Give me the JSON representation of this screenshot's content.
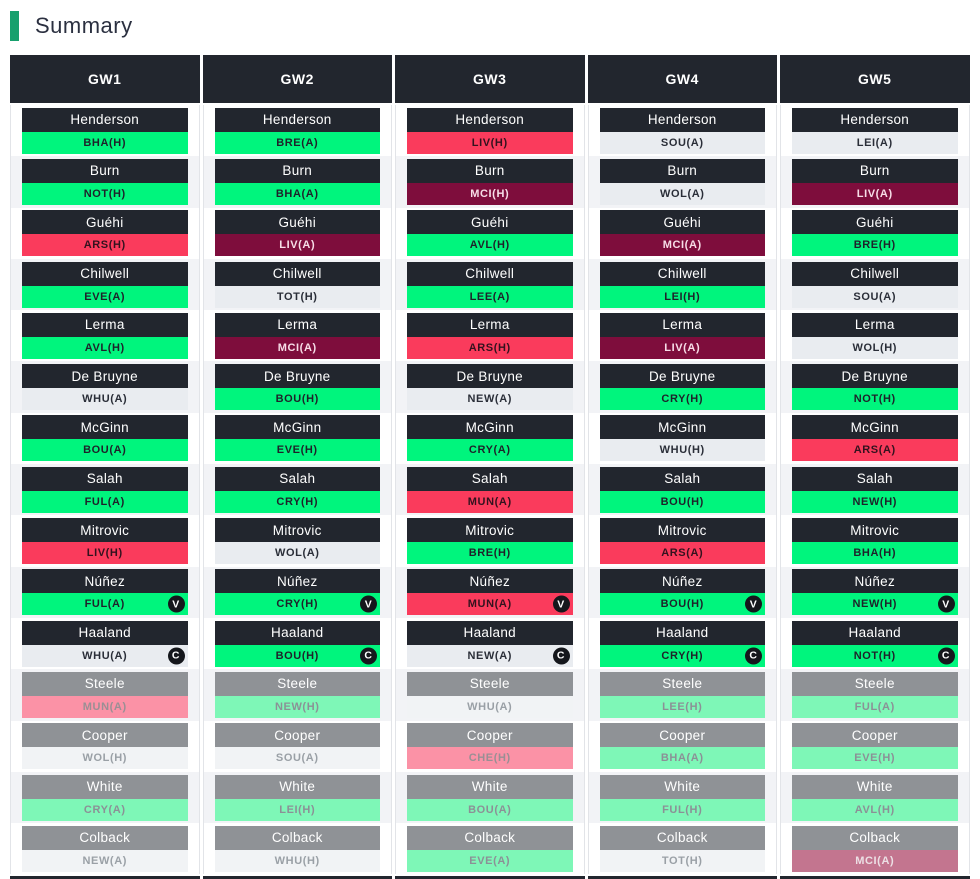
{
  "title": "Summary",
  "accent_color": "#17a06d",
  "colors": {
    "header_bg": "#22262e",
    "bench_name_bg": "#8f9296",
    "row_stripe": "#f2f3f6",
    "starter": {
      "easy": {
        "bg": "#00f57d",
        "text": "#1e222a"
      },
      "medium": {
        "bg": "#e9ecf0",
        "text": "#2a2e38"
      },
      "hard": {
        "bg": "#fa3b5c",
        "text": "#33121e"
      },
      "very_hard": {
        "bg": "#7e0d3c",
        "text": "#f7dde7"
      }
    },
    "bench": {
      "easy": {
        "bg": "#7ef7b7",
        "text": "#8b9196"
      },
      "medium": {
        "bg": "#f1f3f5",
        "text": "#9aa0a6"
      },
      "hard": {
        "bg": "#fb92a6",
        "text": "#9a8f94"
      },
      "very_hard": {
        "bg": "#c3758f",
        "text": "#ece0e5"
      }
    }
  },
  "badge_labels": {
    "captain": "C",
    "vice_captain": "V"
  },
  "gameweeks": [
    {
      "label": "GW1",
      "players": [
        {
          "name": "Henderson",
          "fixture": "BHA(H)",
          "difficulty": "easy",
          "badge": "",
          "bench": false
        },
        {
          "name": "Burn",
          "fixture": "NOT(H)",
          "difficulty": "easy",
          "badge": "",
          "bench": false
        },
        {
          "name": "Guéhi",
          "fixture": "ARS(H)",
          "difficulty": "hard",
          "badge": "",
          "bench": false
        },
        {
          "name": "Chilwell",
          "fixture": "EVE(A)",
          "difficulty": "easy",
          "badge": "",
          "bench": false
        },
        {
          "name": "Lerma",
          "fixture": "AVL(H)",
          "difficulty": "easy",
          "badge": "",
          "bench": false
        },
        {
          "name": "De Bruyne",
          "fixture": "WHU(A)",
          "difficulty": "medium",
          "badge": "",
          "bench": false
        },
        {
          "name": "McGinn",
          "fixture": "BOU(A)",
          "difficulty": "easy",
          "badge": "",
          "bench": false
        },
        {
          "name": "Salah",
          "fixture": "FUL(A)",
          "difficulty": "easy",
          "badge": "",
          "bench": false
        },
        {
          "name": "Mitrovic",
          "fixture": "LIV(H)",
          "difficulty": "hard",
          "badge": "",
          "bench": false
        },
        {
          "name": "Núñez",
          "fixture": "FUL(A)",
          "difficulty": "easy",
          "badge": "V",
          "bench": false
        },
        {
          "name": "Haaland",
          "fixture": "WHU(A)",
          "difficulty": "medium",
          "badge": "C",
          "bench": false
        },
        {
          "name": "Steele",
          "fixture": "MUN(A)",
          "difficulty": "hard",
          "badge": "",
          "bench": true
        },
        {
          "name": "Cooper",
          "fixture": "WOL(H)",
          "difficulty": "medium",
          "badge": "",
          "bench": true
        },
        {
          "name": "White",
          "fixture": "CRY(A)",
          "difficulty": "easy",
          "badge": "",
          "bench": true
        },
        {
          "name": "Colback",
          "fixture": "NEW(A)",
          "difficulty": "medium",
          "badge": "",
          "bench": true
        }
      ]
    },
    {
      "label": "GW2",
      "players": [
        {
          "name": "Henderson",
          "fixture": "BRE(A)",
          "difficulty": "easy",
          "badge": "",
          "bench": false
        },
        {
          "name": "Burn",
          "fixture": "BHA(A)",
          "difficulty": "easy",
          "badge": "",
          "bench": false
        },
        {
          "name": "Guéhi",
          "fixture": "LIV(A)",
          "difficulty": "very_hard",
          "badge": "",
          "bench": false
        },
        {
          "name": "Chilwell",
          "fixture": "TOT(H)",
          "difficulty": "medium",
          "badge": "",
          "bench": false
        },
        {
          "name": "Lerma",
          "fixture": "MCI(A)",
          "difficulty": "very_hard",
          "badge": "",
          "bench": false
        },
        {
          "name": "De Bruyne",
          "fixture": "BOU(H)",
          "difficulty": "easy",
          "badge": "",
          "bench": false
        },
        {
          "name": "McGinn",
          "fixture": "EVE(H)",
          "difficulty": "easy",
          "badge": "",
          "bench": false
        },
        {
          "name": "Salah",
          "fixture": "CRY(H)",
          "difficulty": "easy",
          "badge": "",
          "bench": false
        },
        {
          "name": "Mitrovic",
          "fixture": "WOL(A)",
          "difficulty": "medium",
          "badge": "",
          "bench": false
        },
        {
          "name": "Núñez",
          "fixture": "CRY(H)",
          "difficulty": "easy",
          "badge": "V",
          "bench": false
        },
        {
          "name": "Haaland",
          "fixture": "BOU(H)",
          "difficulty": "easy",
          "badge": "C",
          "bench": false
        },
        {
          "name": "Steele",
          "fixture": "NEW(H)",
          "difficulty": "easy",
          "badge": "",
          "bench": true
        },
        {
          "name": "Cooper",
          "fixture": "SOU(A)",
          "difficulty": "medium",
          "badge": "",
          "bench": true
        },
        {
          "name": "White",
          "fixture": "LEI(H)",
          "difficulty": "easy",
          "badge": "",
          "bench": true
        },
        {
          "name": "Colback",
          "fixture": "WHU(H)",
          "difficulty": "medium",
          "badge": "",
          "bench": true
        }
      ]
    },
    {
      "label": "GW3",
      "players": [
        {
          "name": "Henderson",
          "fixture": "LIV(H)",
          "difficulty": "hard",
          "badge": "",
          "bench": false
        },
        {
          "name": "Burn",
          "fixture": "MCI(H)",
          "difficulty": "very_hard",
          "badge": "",
          "bench": false
        },
        {
          "name": "Guéhi",
          "fixture": "AVL(H)",
          "difficulty": "easy",
          "badge": "",
          "bench": false
        },
        {
          "name": "Chilwell",
          "fixture": "LEE(A)",
          "difficulty": "easy",
          "badge": "",
          "bench": false
        },
        {
          "name": "Lerma",
          "fixture": "ARS(H)",
          "difficulty": "hard",
          "badge": "",
          "bench": false
        },
        {
          "name": "De Bruyne",
          "fixture": "NEW(A)",
          "difficulty": "medium",
          "badge": "",
          "bench": false
        },
        {
          "name": "McGinn",
          "fixture": "CRY(A)",
          "difficulty": "easy",
          "badge": "",
          "bench": false
        },
        {
          "name": "Salah",
          "fixture": "MUN(A)",
          "difficulty": "hard",
          "badge": "",
          "bench": false
        },
        {
          "name": "Mitrovic",
          "fixture": "BRE(H)",
          "difficulty": "easy",
          "badge": "",
          "bench": false
        },
        {
          "name": "Núñez",
          "fixture": "MUN(A)",
          "difficulty": "hard",
          "badge": "V",
          "bench": false
        },
        {
          "name": "Haaland",
          "fixture": "NEW(A)",
          "difficulty": "medium",
          "badge": "C",
          "bench": false
        },
        {
          "name": "Steele",
          "fixture": "WHU(A)",
          "difficulty": "medium",
          "badge": "",
          "bench": true
        },
        {
          "name": "Cooper",
          "fixture": "CHE(H)",
          "difficulty": "hard",
          "badge": "",
          "bench": true
        },
        {
          "name": "White",
          "fixture": "BOU(A)",
          "difficulty": "easy",
          "badge": "",
          "bench": true
        },
        {
          "name": "Colback",
          "fixture": "EVE(A)",
          "difficulty": "easy",
          "badge": "",
          "bench": true
        }
      ]
    },
    {
      "label": "GW4",
      "players": [
        {
          "name": "Henderson",
          "fixture": "SOU(A)",
          "difficulty": "medium",
          "badge": "",
          "bench": false
        },
        {
          "name": "Burn",
          "fixture": "WOL(A)",
          "difficulty": "medium",
          "badge": "",
          "bench": false
        },
        {
          "name": "Guéhi",
          "fixture": "MCI(A)",
          "difficulty": "very_hard",
          "badge": "",
          "bench": false
        },
        {
          "name": "Chilwell",
          "fixture": "LEI(H)",
          "difficulty": "easy",
          "badge": "",
          "bench": false
        },
        {
          "name": "Lerma",
          "fixture": "LIV(A)",
          "difficulty": "very_hard",
          "badge": "",
          "bench": false
        },
        {
          "name": "De Bruyne",
          "fixture": "CRY(H)",
          "difficulty": "easy",
          "badge": "",
          "bench": false
        },
        {
          "name": "McGinn",
          "fixture": "WHU(H)",
          "difficulty": "medium",
          "badge": "",
          "bench": false
        },
        {
          "name": "Salah",
          "fixture": "BOU(H)",
          "difficulty": "easy",
          "badge": "",
          "bench": false
        },
        {
          "name": "Mitrovic",
          "fixture": "ARS(A)",
          "difficulty": "hard",
          "badge": "",
          "bench": false
        },
        {
          "name": "Núñez",
          "fixture": "BOU(H)",
          "difficulty": "easy",
          "badge": "V",
          "bench": false
        },
        {
          "name": "Haaland",
          "fixture": "CRY(H)",
          "difficulty": "easy",
          "badge": "C",
          "bench": false
        },
        {
          "name": "Steele",
          "fixture": "LEE(H)",
          "difficulty": "easy",
          "badge": "",
          "bench": true
        },
        {
          "name": "Cooper",
          "fixture": "BHA(A)",
          "difficulty": "easy",
          "badge": "",
          "bench": true
        },
        {
          "name": "White",
          "fixture": "FUL(H)",
          "difficulty": "easy",
          "badge": "",
          "bench": true
        },
        {
          "name": "Colback",
          "fixture": "TOT(H)",
          "difficulty": "medium",
          "badge": "",
          "bench": true
        }
      ]
    },
    {
      "label": "GW5",
      "players": [
        {
          "name": "Henderson",
          "fixture": "LEI(A)",
          "difficulty": "medium",
          "badge": "",
          "bench": false
        },
        {
          "name": "Burn",
          "fixture": "LIV(A)",
          "difficulty": "very_hard",
          "badge": "",
          "bench": false
        },
        {
          "name": "Guéhi",
          "fixture": "BRE(H)",
          "difficulty": "easy",
          "badge": "",
          "bench": false
        },
        {
          "name": "Chilwell",
          "fixture": "SOU(A)",
          "difficulty": "medium",
          "badge": "",
          "bench": false
        },
        {
          "name": "Lerma",
          "fixture": "WOL(H)",
          "difficulty": "medium",
          "badge": "",
          "bench": false
        },
        {
          "name": "De Bruyne",
          "fixture": "NOT(H)",
          "difficulty": "easy",
          "badge": "",
          "bench": false
        },
        {
          "name": "McGinn",
          "fixture": "ARS(A)",
          "difficulty": "hard",
          "badge": "",
          "bench": false
        },
        {
          "name": "Salah",
          "fixture": "NEW(H)",
          "difficulty": "easy",
          "badge": "",
          "bench": false
        },
        {
          "name": "Mitrovic",
          "fixture": "BHA(H)",
          "difficulty": "easy",
          "badge": "",
          "bench": false
        },
        {
          "name": "Núñez",
          "fixture": "NEW(H)",
          "difficulty": "easy",
          "badge": "V",
          "bench": false
        },
        {
          "name": "Haaland",
          "fixture": "NOT(H)",
          "difficulty": "easy",
          "badge": "C",
          "bench": false
        },
        {
          "name": "Steele",
          "fixture": "FUL(A)",
          "difficulty": "easy",
          "badge": "",
          "bench": true
        },
        {
          "name": "Cooper",
          "fixture": "EVE(H)",
          "difficulty": "easy",
          "badge": "",
          "bench": true
        },
        {
          "name": "White",
          "fixture": "AVL(H)",
          "difficulty": "easy",
          "badge": "",
          "bench": true
        },
        {
          "name": "Colback",
          "fixture": "MCI(A)",
          "difficulty": "very_hard",
          "badge": "",
          "bench": true
        }
      ]
    }
  ]
}
